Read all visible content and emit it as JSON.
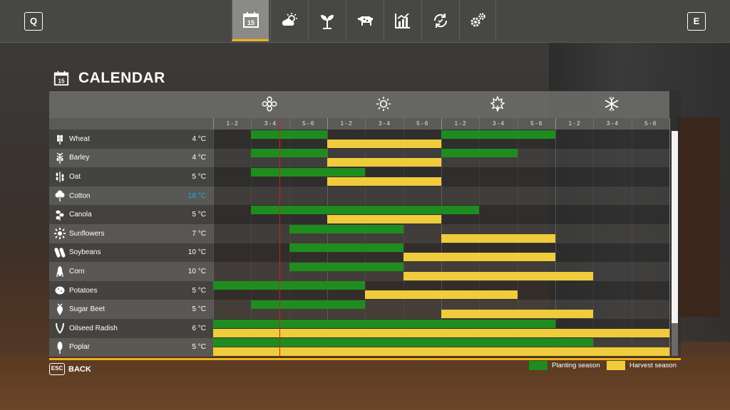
{
  "topbar": {
    "left_key": "Q",
    "right_key": "E",
    "tabs": [
      {
        "icon": "calendar-icon",
        "label": "15",
        "active": true
      },
      {
        "icon": "weather-icon",
        "active": false
      },
      {
        "icon": "plant-icon",
        "active": false
      },
      {
        "icon": "animal-icon",
        "active": false
      },
      {
        "icon": "stats-icon",
        "active": false
      },
      {
        "icon": "cycle-icon",
        "active": false
      },
      {
        "icon": "settings-icon",
        "active": false
      }
    ]
  },
  "page": {
    "title_icon_label": "15",
    "title": "CALENDAR"
  },
  "calendar": {
    "seasons": [
      "spring-icon",
      "summer-icon",
      "autumn-icon",
      "winter-icon"
    ],
    "period_labels": [
      "1 - 2",
      "3 - 4",
      "5 - 6",
      "1 - 2",
      "3 - 4",
      "5 - 6",
      "1 - 2",
      "3 - 4",
      "5 - 6",
      "1 - 2",
      "3 - 4",
      "5 - 6"
    ],
    "current_period": 2.74,
    "crops": [
      {
        "name": "Wheat",
        "temp": "4 °C",
        "icon": "wheat-icon",
        "plant": [
          [
            2,
            3
          ],
          [
            7,
            9
          ]
        ],
        "harvest": [
          [
            4,
            6
          ]
        ]
      },
      {
        "name": "Barley",
        "temp": "4 °C",
        "icon": "barley-icon",
        "plant": [
          [
            2,
            3
          ],
          [
            7,
            8
          ]
        ],
        "harvest": [
          [
            4,
            6
          ]
        ]
      },
      {
        "name": "Oat",
        "temp": "5 °C",
        "icon": "oat-icon",
        "plant": [
          [
            2,
            4
          ]
        ],
        "harvest": [
          [
            4,
            6
          ]
        ]
      },
      {
        "name": "Cotton",
        "temp": "18 °C",
        "icon": "cotton-icon",
        "temp_color": "#2aa8e8",
        "plant": [],
        "harvest": []
      },
      {
        "name": "Canola",
        "temp": "5 °C",
        "icon": "canola-icon",
        "plant": [
          [
            2,
            4
          ],
          [
            5,
            7
          ]
        ],
        "harvest": [
          [
            4,
            6
          ]
        ]
      },
      {
        "name": "Sunflowers",
        "temp": "7 °C",
        "icon": "sunflower-icon",
        "plant": [
          [
            3,
            5
          ]
        ],
        "harvest": [
          [
            7,
            9
          ]
        ]
      },
      {
        "name": "Soybeans",
        "temp": "10 °C",
        "icon": "soybean-icon",
        "plant": [
          [
            3,
            5
          ]
        ],
        "harvest": [
          [
            6,
            9
          ]
        ]
      },
      {
        "name": "Corn",
        "temp": "10 °C",
        "icon": "corn-icon",
        "plant": [
          [
            3,
            5
          ]
        ],
        "harvest": [
          [
            6,
            10
          ]
        ]
      },
      {
        "name": "Potatoes",
        "temp": "5 °C",
        "icon": "potato-icon",
        "plant": [
          [
            1,
            4
          ]
        ],
        "harvest": [
          [
            5,
            8
          ]
        ]
      },
      {
        "name": "Sugar Beet",
        "temp": "5 °C",
        "icon": "sugarbeet-icon",
        "plant": [
          [
            2,
            4
          ]
        ],
        "harvest": [
          [
            7,
            10
          ]
        ]
      },
      {
        "name": "Oilseed Radish",
        "temp": "6 °C",
        "icon": "radish-icon",
        "plant": [
          [
            1,
            9
          ]
        ],
        "harvest": [
          [
            1,
            12
          ]
        ]
      },
      {
        "name": "Poplar",
        "temp": "5 °C",
        "icon": "poplar-icon",
        "plant": [
          [
            1,
            10
          ]
        ],
        "harvest": [
          [
            1,
            12
          ]
        ]
      }
    ]
  },
  "footer": {
    "esc_key": "ESC",
    "back_label": "BACK",
    "legend": [
      {
        "label": "Planting season",
        "color": "#1f8c1f"
      },
      {
        "label": "Harvest season",
        "color": "#f0cc3c"
      }
    ]
  },
  "colors": {
    "accent": "#f3b21a",
    "planting": "#1f8c1f",
    "harvest": "#f0cc3c",
    "current_marker": "#d01e1e"
  }
}
